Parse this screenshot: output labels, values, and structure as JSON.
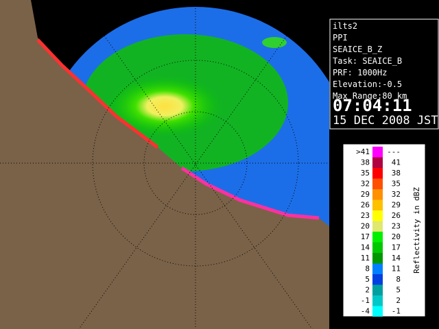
{
  "info": {
    "lines": [
      "ilts2",
      "PPI",
      "SEAICE_B_Z",
      "Task: SEAICE_B",
      "PRF: 1000Hz",
      "Elevation:-0.5",
      "Max Range:80 km"
    ],
    "time": "07:04:11",
    "date": "15 DEC 2008 JST"
  },
  "legend": {
    "title": "Reflectivity in dBZ",
    "rows": [
      {
        "low": ">41",
        "high": "---",
        "color": "#ff00ff"
      },
      {
        "low": "38",
        "high": "41",
        "color": "#b00040"
      },
      {
        "low": "35",
        "high": "38",
        "color": "#ff0000"
      },
      {
        "low": "32",
        "high": "35",
        "color": "#ff5000"
      },
      {
        "low": "29",
        "high": "32",
        "color": "#ff9000"
      },
      {
        "low": "26",
        "high": "29",
        "color": "#ffc000"
      },
      {
        "low": "23",
        "high": "26",
        "color": "#ffff00"
      },
      {
        "low": "20",
        "high": "23",
        "color": "#e0e870"
      },
      {
        "low": "17",
        "high": "20",
        "color": "#00f000"
      },
      {
        "low": "14",
        "high": "17",
        "color": "#00c800"
      },
      {
        "low": "11",
        "high": "14",
        "color": "#009800"
      },
      {
        "low": "8",
        "high": "11",
        "color": "#0080ff"
      },
      {
        "low": "5",
        "high": "8",
        "color": "#0040e0"
      },
      {
        "low": "2",
        "high": "5",
        "color": "#00a0a0"
      },
      {
        "low": "-1",
        "high": "2",
        "color": "#00c8c8"
      },
      {
        "low": "-4",
        "high": "-1",
        "color": "#00ffff"
      }
    ]
  }
}
